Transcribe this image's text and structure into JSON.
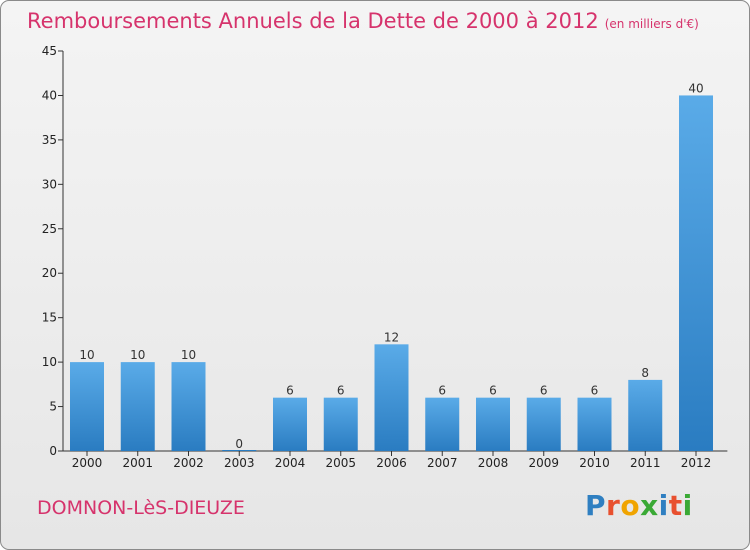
{
  "header": {
    "title": "Remboursements Annuels de la Dette de 2000 à 2012",
    "unit": "(en milliers d'€)"
  },
  "footer": {
    "commune": "DOMNON-LèS-DIEUZE",
    "brand": [
      "P",
      "r",
      "o",
      "x",
      "i",
      "t",
      "i"
    ],
    "brand_colors": [
      "#2f7fc1",
      "#e8502f",
      "#f0a400",
      "#3aa935",
      "#2f7fc1",
      "#e8502f",
      "#3aa935"
    ]
  },
  "chart_data": {
    "type": "bar",
    "title": "Remboursements Annuels de la Dette de 2000 à 2012",
    "subtitle": "(en milliers d'€)",
    "categories": [
      "2000",
      "2001",
      "2002",
      "2003",
      "2004",
      "2005",
      "2006",
      "2007",
      "2008",
      "2009",
      "2010",
      "2011",
      "2012"
    ],
    "values": [
      10,
      10,
      10,
      0,
      6,
      6,
      12,
      6,
      6,
      6,
      6,
      8,
      40
    ],
    "data_labels": [
      "10",
      "10",
      "10",
      "0",
      "6",
      "6",
      "12",
      "6",
      "6",
      "6",
      "6",
      "8",
      "40"
    ],
    "ylim": [
      0,
      45
    ],
    "yticks": [
      0,
      5,
      10,
      15,
      20,
      25,
      30,
      35,
      40,
      45
    ],
    "xlabel": "",
    "ylabel": "",
    "grid": false,
    "bar_color_top": "#5aabe8",
    "bar_color_bottom": "#2a7cc1"
  }
}
